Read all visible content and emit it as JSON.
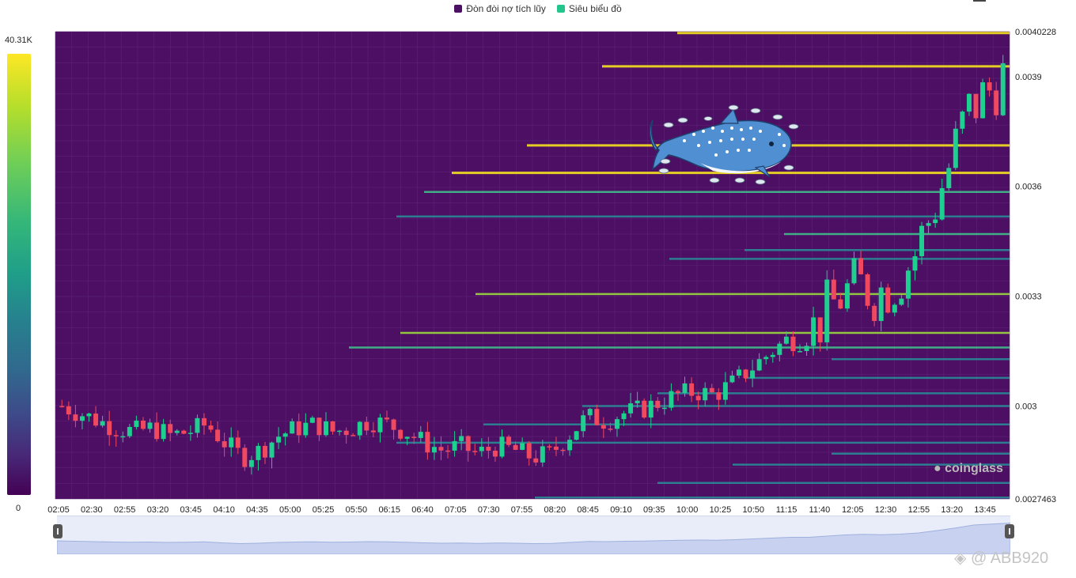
{
  "legend": [
    {
      "label": "Đòn đòi nợ tích lũy",
      "color": "#4b0f63"
    },
    {
      "label": "Siêu biểu đồ",
      "color": "#22c58c"
    }
  ],
  "colorbar": {
    "max_label": "40.31K",
    "min_label": "0"
  },
  "watermarks": {
    "brand": "coinglass",
    "user": "@ ABB920"
  },
  "colors": {
    "plot_bg": "#4d0f63",
    "up": "#1fcf8f",
    "down": "#f0485f",
    "liq_low": "#2a8a8a",
    "liq_high": "#f5e31f"
  },
  "icons": {
    "brand_icon": "coinglass-bear-icon",
    "mascot": "whale-shark-icon",
    "user_icon": "binance-diamond-icon"
  },
  "chart_data": {
    "type": "candlestick-heatmap",
    "y_ticks": [
      "0.0040228",
      "0.0039",
      "0.0036",
      "0.0033",
      "0.003",
      "0.0027463"
    ],
    "ylim": [
      0.0027463,
      0.0040228
    ],
    "x_ticks": [
      "02:05",
      "02:30",
      "02:55",
      "03:20",
      "03:45",
      "04:10",
      "04:35",
      "05:00",
      "05:25",
      "05:50",
      "06:15",
      "06:40",
      "07:05",
      "07:30",
      "07:55",
      "08:20",
      "08:45",
      "09:10",
      "09:35",
      "10:00",
      "10:25",
      "10:50",
      "11:15",
      "11:40",
      "12:05",
      "12:30",
      "12:55",
      "13:20",
      "13:45"
    ],
    "close_path": [
      0.003,
      0.00298,
      0.00296,
      0.00294,
      0.00293,
      0.00294,
      0.00292,
      0.00293,
      0.00295,
      0.0029,
      0.00286,
      0.00288,
      0.00292,
      0.00294,
      0.00295,
      0.00293,
      0.00294,
      0.00296,
      0.00295,
      0.00293,
      0.0029,
      0.00288,
      0.00289,
      0.00287,
      0.00289,
      0.00288,
      0.00286,
      0.00287,
      0.00292,
      0.00297,
      0.00296,
      0.00298,
      0.00299,
      0.00301,
      0.00303,
      0.00304,
      0.00303,
      0.00306,
      0.0031,
      0.00314,
      0.00318,
      0.00318,
      0.00324,
      0.0033,
      0.00333,
      0.00331,
      0.00334,
      0.0034,
      0.00352,
      0.00365,
      0.0038,
      0.00385,
      0.0039
    ],
    "liquidation_levels": [
      {
        "price": 0.004019,
        "intensity": 1.0
      },
      {
        "price": 0.003928,
        "intensity": 0.95
      },
      {
        "price": 0.003712,
        "intensity": 0.9
      },
      {
        "price": 0.003637,
        "intensity": 0.85
      },
      {
        "price": 0.003585,
        "intensity": 0.6
      },
      {
        "price": 0.003518,
        "intensity": 0.35
      },
      {
        "price": 0.00347,
        "intensity": 0.55
      },
      {
        "price": 0.003426,
        "intensity": 0.35
      },
      {
        "price": 0.003402,
        "intensity": 0.3
      },
      {
        "price": 0.003306,
        "intensity": 0.75
      },
      {
        "price": 0.0032,
        "intensity": 0.7
      },
      {
        "price": 0.00316,
        "intensity": 0.55
      },
      {
        "price": 0.003128,
        "intensity": 0.35
      },
      {
        "price": 0.003077,
        "intensity": 0.35
      },
      {
        "price": 0.003035,
        "intensity": 0.35
      },
      {
        "price": 0.003,
        "intensity": 0.3
      },
      {
        "price": 0.00295,
        "intensity": 0.35
      },
      {
        "price": 0.0029,
        "intensity": 0.35
      },
      {
        "price": 0.00287,
        "intensity": 0.35
      },
      {
        "price": 0.00284,
        "intensity": 0.4
      },
      {
        "price": 0.00279,
        "intensity": 0.35
      },
      {
        "price": 0.00275,
        "intensity": 0.5
      }
    ]
  }
}
